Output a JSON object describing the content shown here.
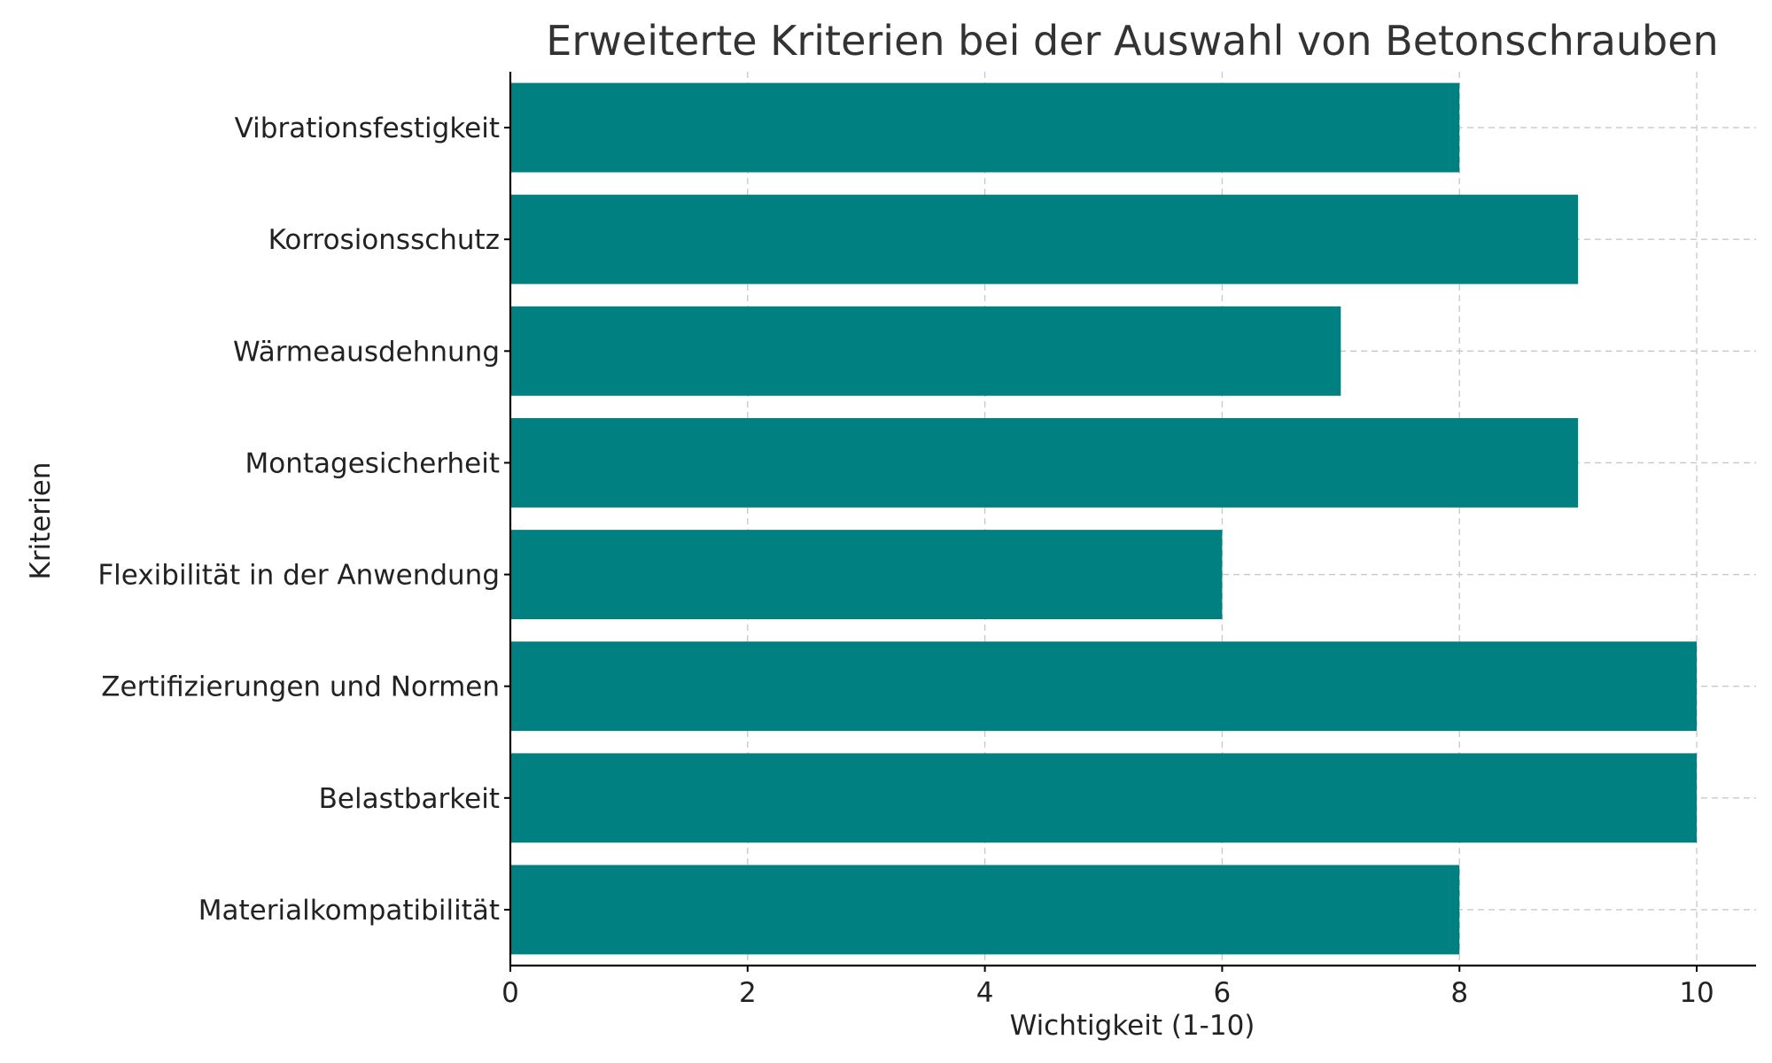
{
  "chart_data": {
    "type": "bar",
    "orientation": "horizontal",
    "title": "Erweiterte Kriterien bei der Auswahl von Betonschrauben",
    "xlabel": "Wichtigkeit (1-10)",
    "ylabel": "Kriterien",
    "categories": [
      "Materialkompatibilität",
      "Belastbarkeit",
      "Zertifizierungen und Normen",
      "Flexibilität in der Anwendung",
      "Montagesicherheit",
      "Wärmeausdehnung",
      "Korrosionsschutz",
      "Vibrationsfestigkeit"
    ],
    "values": [
      8,
      10,
      10,
      6,
      9,
      7,
      9,
      8
    ],
    "xlim": [
      0,
      10.5
    ],
    "xticks": [
      "0",
      "2",
      "4",
      "6",
      "8",
      "10"
    ],
    "grid": true,
    "bar_color": "#008080"
  }
}
